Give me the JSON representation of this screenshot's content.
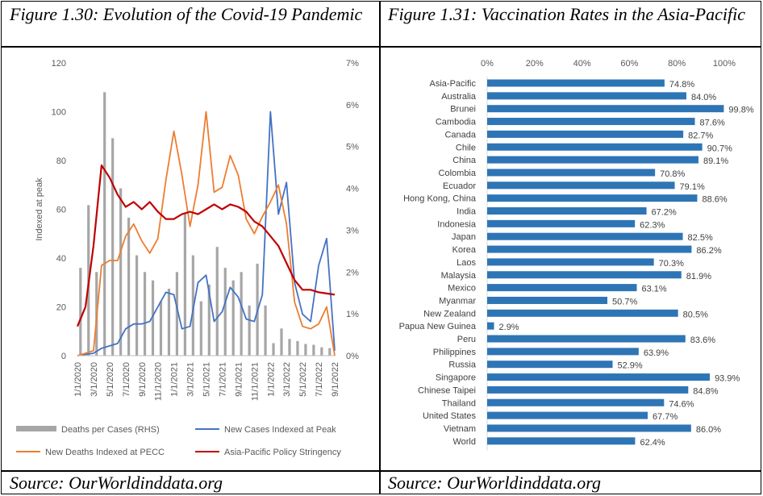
{
  "figures": {
    "left_title": "Figure 1.30: Evolution of the Covid-19 Pandemic",
    "right_title": "Figure 1.31: Vaccination Rates in the Asia-Pacific",
    "left_source": "Source: OurWorldinddata.org",
    "right_source": "Source: OurWorldinddata.org"
  },
  "chart_data": [
    {
      "type": "bar+line",
      "ylabel": "Indexed at peak",
      "ylim": [
        0,
        120
      ],
      "y_ticks": [
        "0",
        "20",
        "40",
        "60",
        "80",
        "100",
        "120"
      ],
      "y2lim": [
        0,
        0.07
      ],
      "y2_ticks": [
        "0%",
        "1%",
        "2%",
        "3%",
        "4%",
        "5%",
        "6%",
        "7%"
      ],
      "x_tick_labels": [
        "1/1/2020",
        "3/1/2020",
        "5/1/2020",
        "7/1/2020",
        "9/1/2020",
        "11/1/2020",
        "1/1/2021",
        "3/1/2021",
        "5/1/2021",
        "7/1/2021",
        "9/1/2021",
        "11/1/2021",
        "1/1/2022",
        "3/1/2022",
        "5/1/2022",
        "7/1/2022",
        "9/1/2022"
      ],
      "legend_position": "bottom",
      "colors": {
        "deaths": "#a6a6a6",
        "cases": "#4472c4",
        "new_deaths": "#ed7d31",
        "stringency": "#c00000"
      },
      "series": [
        {
          "name": "Deaths per Cases (RHS)",
          "type": "bar",
          "axis": "right",
          "values": [
            0.021,
            0.036,
            0.02,
            0.063,
            0.052,
            0.04,
            0.033,
            0.024,
            0.02,
            0.018,
            0.013,
            0.016,
            0.02,
            0.034,
            0.024,
            0.013,
            0.017,
            0.026,
            0.021,
            0.018,
            0.02,
            0.012,
            0.022,
            0.012,
            0.003,
            0.0065,
            0.004,
            0.0035,
            0.0028,
            0.0026,
            0.002,
            0.0018
          ]
        },
        {
          "name": "New Cases Indexed at Peak",
          "type": "line",
          "axis": "left",
          "values": [
            0,
            0.5,
            1,
            3,
            4,
            5,
            11,
            13,
            13,
            14,
            20,
            26,
            25,
            11,
            12,
            30,
            33,
            14,
            18,
            28,
            24,
            15,
            14,
            25,
            100,
            58,
            71,
            30,
            17,
            14,
            37,
            48,
            2
          ]
        },
        {
          "name": "New Deaths Indexed at PECC",
          "type": "line",
          "axis": "left",
          "values": [
            0,
            1,
            2,
            37,
            39,
            39,
            49,
            54,
            47,
            42,
            48,
            72,
            92,
            74,
            53,
            70,
            100,
            67,
            69,
            82,
            74,
            56,
            50,
            57,
            63,
            70,
            54,
            22,
            12,
            11,
            13,
            20,
            0
          ]
        },
        {
          "name": "Asia-Pacific Policy Stringency",
          "type": "line",
          "axis": "left",
          "values": [
            12,
            20,
            45,
            78,
            73,
            66,
            61,
            63,
            60,
            63,
            59,
            56,
            56,
            58,
            59,
            58,
            60,
            62,
            60,
            62,
            61,
            59,
            55,
            53,
            49,
            45,
            38,
            31,
            27,
            27,
            26,
            25.5,
            25
          ]
        }
      ]
    },
    {
      "type": "bar",
      "orientation": "horizontal",
      "xlim": [
        0,
        100
      ],
      "x_ticks": [
        "0%",
        "20%",
        "40%",
        "60%",
        "80%",
        "100%"
      ],
      "color": "#2e75b6",
      "categories": [
        "Asia-Pacific",
        "Australia",
        "Brunei",
        "Cambodia",
        "Canada",
        "Chile",
        "China",
        "Colombia",
        "Ecuador",
        "Hong Kong, China",
        "India",
        "Indonesia",
        "Japan",
        "Korea",
        "Laos",
        "Malaysia",
        "Mexico",
        "Myanmar",
        "New Zealand",
        "Papua New Guinea",
        "Peru",
        "Philippines",
        "Russia",
        "Singapore",
        "Chinese Taipei",
        "Thailand",
        "United States",
        "Vietnam",
        "World"
      ],
      "values": [
        74.8,
        84.0,
        99.8,
        87.6,
        82.7,
        90.7,
        89.1,
        70.8,
        79.1,
        88.6,
        67.2,
        62.3,
        82.5,
        86.2,
        70.3,
        81.9,
        63.1,
        50.7,
        80.5,
        2.9,
        83.6,
        63.9,
        52.9,
        93.9,
        84.8,
        74.6,
        67.7,
        86.0,
        62.4
      ],
      "value_labels": [
        "74.8%",
        "84.0%",
        "99.8%",
        "87.6%",
        "82.7%",
        "90.7%",
        "89.1%",
        "70.8%",
        "79.1%",
        "88.6%",
        "67.2%",
        "62.3%",
        "82.5%",
        "86.2%",
        "70.3%",
        "81.9%",
        "63.1%",
        "50.7%",
        "80.5%",
        "2.9%",
        "83.6%",
        "63.9%",
        "52.9%",
        "93.9%",
        "84.8%",
        "74.6%",
        "67.7%",
        "86.0%",
        "62.4%"
      ]
    }
  ]
}
